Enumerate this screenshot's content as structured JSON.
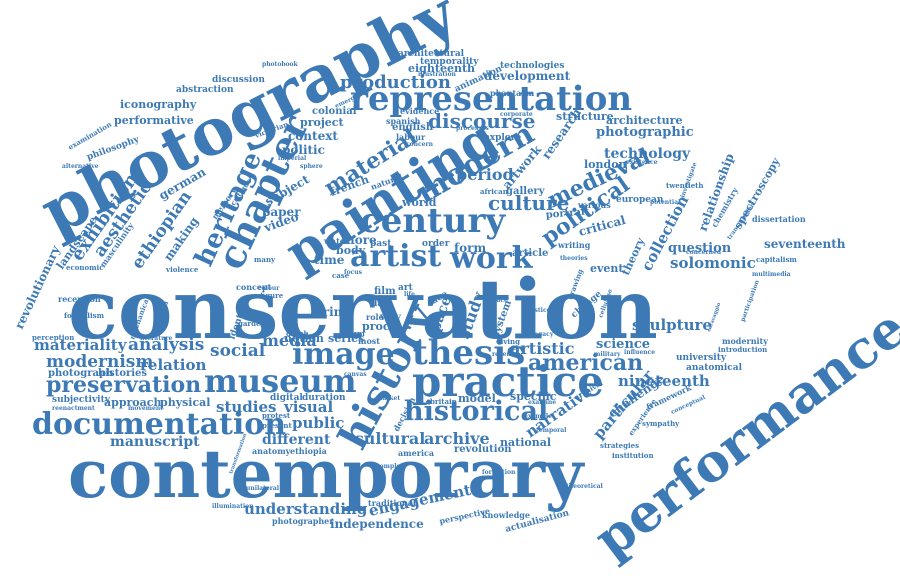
{
  "colors": {
    "word": "#3d7ab5",
    "background": "#ffffff"
  },
  "words": {
    "conservation": "conservation",
    "contemporary": "contemporary",
    "photography": "photography",
    "performance": "performance",
    "painting": "painting",
    "practice": "practice",
    "representation": "representation",
    "museum": "museum",
    "documentation": "documentation",
    "chapter": "chapter",
    "history": "history",
    "thesis": "thesis",
    "historical": "historical",
    "century": "century",
    "modern": "modern",
    "artist": "artist",
    "work": "work",
    "image": "image",
    "heritage": "heritage",
    "preservation": "preservation",
    "political": "political",
    "medieval": "medieval",
    "material": "material",
    "american": "american",
    "production": "production",
    "discourse": "discourse",
    "culture": "culture",
    "exhibition": "exhibition",
    "aesthetic": "aesthetic",
    "ethiopian": "ethiopian",
    "modernism": "modernism",
    "materiality": "materiality",
    "analysis": "analysis",
    "social": "social",
    "media": "media",
    "relation": "relation",
    "studies": "studies",
    "visual": "visual",
    "public": "public",
    "cultural": "cultural",
    "archive": "archive",
    "understanding": "understanding",
    "engagement": "engagement",
    "independence": "independence",
    "manuscript": "manuscript",
    "different": "different",
    "nineteenth": "nineteenth",
    "sculpture": "sculpture",
    "science": "science",
    "solomonic": "solomonic",
    "question": "question",
    "collection": "collection",
    "seventeenth": "seventeenth",
    "photographic": "photographic",
    "technology": "technology",
    "architecture": "architecture",
    "relationship": "relationship",
    "period": "period",
    "artistic": "artistic",
    "narrative": "narrative",
    "particular": "particular",
    "study": "study",
    "revolutionary": "revolutionary",
    "development": "development",
    "eighteenth": "eighteenth",
    "iconography": "iconography",
    "performative": "performative",
    "context": "context",
    "politic": "politic",
    "project": "project",
    "colonial": "colonial",
    "german": "german",
    "subject": "subject",
    "french": "french",
    "making": "making",
    "paper": "paper",
    "video": "video",
    "print": "/print",
    "form": "form",
    "space": "space",
    "time": "time",
    "more": "more",
    "body": "body",
    "series": "series",
    "notion": "notion",
    "approach": "approach",
    "physical": "physical",
    "photograph": "photograph",
    "histories": "histories",
    "world": "world",
    "london": "london",
    "theory": "theory",
    "event": "event",
    "critical": "critical",
    "research": "research",
    "artwork": "artwork",
    "english": "english",
    "structure": "structure",
    "challenge": "challenge",
    "national": "national",
    "revolution": "revolution",
    "specific": "specific",
    "model": "model",
    "gallery": "gallery",
    "portrait": "portrait",
    "article": "article",
    "abstraction": "abstraction",
    "discussion": "discussion",
    "architectural": "architectural",
    "temporality": "temporality",
    "technologies": "technologies",
    "animation": "animation",
    "phantasm": "phantasm",
    "illustration": "illustration",
    "photobook": "photobook",
    "philosophy": "philosophy",
    "examination": "examination",
    "alternative": "alternative",
    "landscape": "landscape",
    "masculinity": "masculinity",
    "economic": "economic",
    "violence": "violence",
    "reception": "reception",
    "formalism": "formalism",
    "perception": "perception",
    "subjectivity": "subjectivity",
    "reenactment": "reenactment",
    "movement": "movement",
    "literature": "literature",
    "mechanical": "mechanical",
    "attention": "attention",
    "identity": "identity",
    "digital": "digital",
    "duration": "duration",
    "anatomy": "anatomy",
    "ethiopia": "ethiopia",
    "protest": "protest",
    "present": "present",
    "transformation": "transformation",
    "unilateral": "unilateral",
    "illumination": "illumination",
    "photographer": "photographer",
    "traditional": "traditional",
    "perspective": "perspective",
    "knowledge": "knowledge",
    "actualisation": "actualisation",
    "formation": "formation",
    "theoretical": "theoretical",
    "strategies": "strategies",
    "sympathy": "sympathy",
    "framework": "framework",
    "conceptual": "conceptual",
    "experience": "experience",
    "anatomical": "anatomical",
    "modernity": "modernity",
    "introduction": "introduction",
    "university": "university",
    "influence": "influence",
    "military": "military",
    "caravaggio": "caravaggio",
    "participation": "participation",
    "capitalism": "capitalism",
    "multimedia": "multimedia",
    "dissertation": "dissertation",
    "spectroscopy": "spectroscopy",
    "chemistry": "chemistry",
    "transmission": "transmission",
    "investigate": "investigate",
    "european": "european",
    "twentieth": "twentieth",
    "potential": "potential",
    "existence": "existence",
    "evidence": "evidence",
    "spanish": "spanish",
    "labour": "labour",
    "explore": "explore",
    "processes": "processes",
    "corporate": "corporate",
    "victorian": "victorian",
    "emergence": "emergence",
    "memory": "memory",
    "critique": "critique",
    "natural": "natural",
    "african": "african",
    "various": "various",
    "writing": "writing",
    "theories": "theories",
    "concept": "concept",
    "water": "water",
    "past": "past",
    "order": "order",
    "film": "film",
    "late": "late",
    "life": "life",
    "living": "living",
    "recent": "recent",
    "most": "most",
    "system": "system",
    "change": "change",
    "idea": "idea",
    "decision": "decision",
    "britain": "britain",
    "cellulose": "cellulose",
    "temporal": "temporal",
    "archival": "archival",
    "examine": "examine",
    "role": "role",
    "figure": "figure",
    "dutch": "dutch",
    "garde": "garde",
    "case": "case",
    "term": "term",
    "many": "many",
    "colour": "colour",
    "institution": "institution",
    "america": "america",
    "complex": "complex",
    "example": "example",
    "imperial": "imperial",
    "focus": "focus",
    "leads": "leads",
    "canvas": "canvas",
    "market": "market",
    "aesthetics": "aesthetics",
    "legacy": "legacy",
    "justice": "justice",
    "images": "images",
    "chemical": "chemical",
    "tiberian": "tiberian",
    "conflict": "conflict",
    "romantic": "romantic",
    "condition": "condition",
    "drawing": "drawing",
    "concerned": "concerned",
    "space2": "sphere",
    "concern": "concern",
    "proc": "proc",
    "way": "way",
    "art": "art",
    "place": "place",
    "radio": "radio",
    "skin": "skin",
    "john": "john",
    "human": "human",
    "medium": "medium",
    "other": "other",
    "sound": "sound",
    "italian": "italian",
    "reality": "reality",
    "nature": "nature",
    "politics2": "politics"
  }
}
